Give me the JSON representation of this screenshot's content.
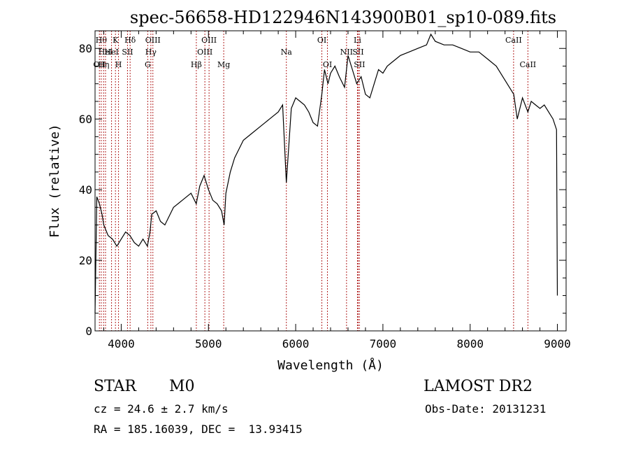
{
  "chart_data": {
    "type": "line",
    "title": "spec-56658-HD122946N143900B01_sp10-089.fits",
    "xlabel": "Wavelength (Å)",
    "ylabel": "Flux (relative)",
    "xlim": [
      3700,
      9100
    ],
    "ylim": [
      0,
      85
    ],
    "x_ticks": [
      4000,
      5000,
      6000,
      7000,
      8000,
      9000
    ],
    "y_ticks": [
      0,
      20,
      40,
      60,
      80
    ],
    "grid": false,
    "legend": "none",
    "series": [
      {
        "x": [
          3700,
          3720,
          3750,
          3780,
          3800,
          3850,
          3900,
          3950,
          4000,
          4050,
          4100,
          4150,
          4200,
          4250,
          4300,
          4330,
          4350,
          4400,
          4450,
          4500,
          4600,
          4700,
          4800,
          4860,
          4900,
          4950,
          5000,
          5050,
          5100,
          5150,
          5180,
          5200,
          5250,
          5300,
          5400,
          5500,
          5600,
          5700,
          5800,
          5850,
          5893,
          5950,
          6000,
          6050,
          6100,
          6150,
          6200,
          6250,
          6300,
          6330,
          6370,
          6400,
          6450,
          6500,
          6560,
          6600,
          6650,
          6700,
          6750,
          6800,
          6850,
          6900,
          6950,
          7000,
          7050,
          7100,
          7150,
          7200,
          7300,
          7400,
          7500,
          7550,
          7600,
          7700,
          7800,
          7900,
          8000,
          8100,
          8200,
          8300,
          8400,
          8500,
          8540,
          8600,
          8662,
          8700,
          8750,
          8800,
          8850,
          8900,
          8950,
          8990,
          9000
        ],
        "y": [
          5,
          38,
          36,
          33,
          30,
          27,
          26,
          24,
          26,
          28,
          27,
          25,
          24,
          26,
          24,
          28,
          33,
          34,
          31,
          30,
          35,
          37,
          39,
          36,
          41,
          44,
          40,
          37,
          36,
          34,
          30,
          39,
          45,
          49,
          54,
          56,
          58,
          60,
          62,
          64,
          42,
          63,
          66,
          65,
          64,
          62,
          59,
          58,
          67,
          74,
          70,
          73,
          75,
          72,
          69,
          78,
          74,
          70,
          72,
          67,
          66,
          70,
          74,
          73,
          75,
          76,
          77,
          78,
          79,
          80,
          81,
          84,
          82,
          81,
          81,
          80,
          79,
          79,
          77,
          75,
          71,
          67,
          60,
          66,
          62,
          65,
          64,
          63,
          64,
          62,
          60,
          57,
          10
        ]
      }
    ],
    "lines": [
      {
        "x": 3750,
        "label": "OII",
        "row": 3
      },
      {
        "x": 3771,
        "label": "Hθ",
        "row": 1
      },
      {
        "x": 3798,
        "label": "Hη",
        "row": 3
      },
      {
        "x": 3820,
        "label": "HeI",
        "row": 2
      },
      {
        "x": 3889,
        "label": "HeI",
        "row": 2
      },
      {
        "x": 3934,
        "label": "K",
        "row": 1
      },
      {
        "x": 3969,
        "label": "H",
        "row": 3
      },
      {
        "x": 4072,
        "label": "SII",
        "row": 2
      },
      {
        "x": 4102,
        "label": "Hδ",
        "row": 1
      },
      {
        "x": 4304,
        "label": "G",
        "row": 3
      },
      {
        "x": 4340,
        "label": "Hγ",
        "row": 2
      },
      {
        "x": 4363,
        "label": "OIII",
        "row": 1
      },
      {
        "x": 4861,
        "label": "Hβ",
        "row": 3
      },
      {
        "x": 4959,
        "label": "OIII",
        "row": 2
      },
      {
        "x": 5007,
        "label": "OIII",
        "row": 1
      },
      {
        "x": 5175,
        "label": "Mg",
        "row": 3
      },
      {
        "x": 5893,
        "label": "Na",
        "row": 2
      },
      {
        "x": 6300,
        "label": "OI",
        "row": 1
      },
      {
        "x": 6364,
        "label": "OI",
        "row": 3
      },
      {
        "x": 6583,
        "label": "NII",
        "row": 2
      },
      {
        "x": 6708,
        "label": "Li",
        "row": 1
      },
      {
        "x": 6716,
        "label": "SII",
        "row": 2
      },
      {
        "x": 6731,
        "label": "SII",
        "row": 3
      },
      {
        "x": 8498,
        "label": "CaII",
        "row": 1
      },
      {
        "x": 8662,
        "label": "CaII",
        "row": 3
      }
    ]
  },
  "info": {
    "class": "STAR",
    "subclass": "M0",
    "survey": "LAMOST DR2",
    "cz": "cz = 24.6 ± 2.7 km/s",
    "obs_date": "Obs-Date: 20131231",
    "coords": "RA = 185.16039, DEC =  13.93415"
  }
}
